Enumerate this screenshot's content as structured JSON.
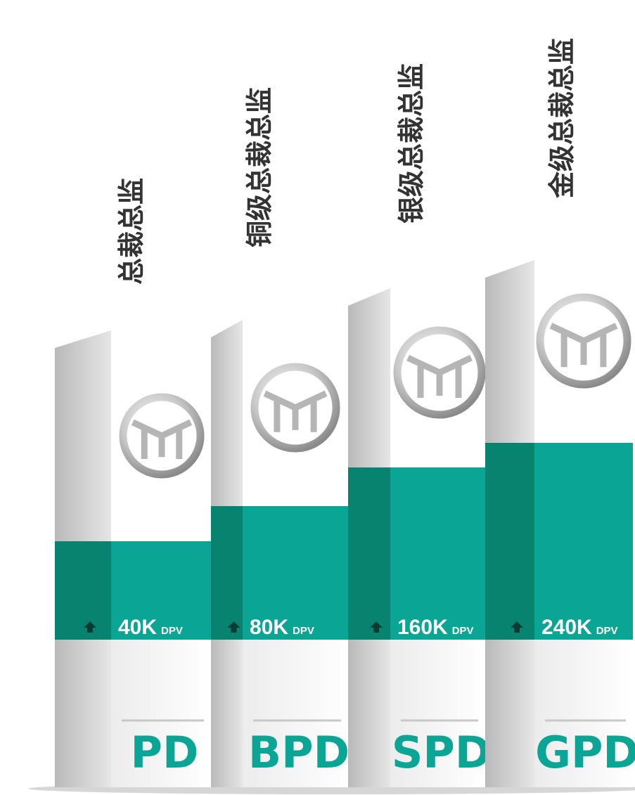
{
  "levels": [
    {
      "title": "总裁总监",
      "amount": "40K",
      "unit": "DPV",
      "code": "PD"
    },
    {
      "title": "铜级总裁总监",
      "amount": "80K",
      "unit": "DPV",
      "code": "BPD"
    },
    {
      "title": "银级总裁总监",
      "amount": "160K",
      "unit": "DPV",
      "code": "SPD"
    },
    {
      "title": "金级总裁总监",
      "amount": "240K",
      "unit": "DPV",
      "code": "GPD"
    }
  ]
}
